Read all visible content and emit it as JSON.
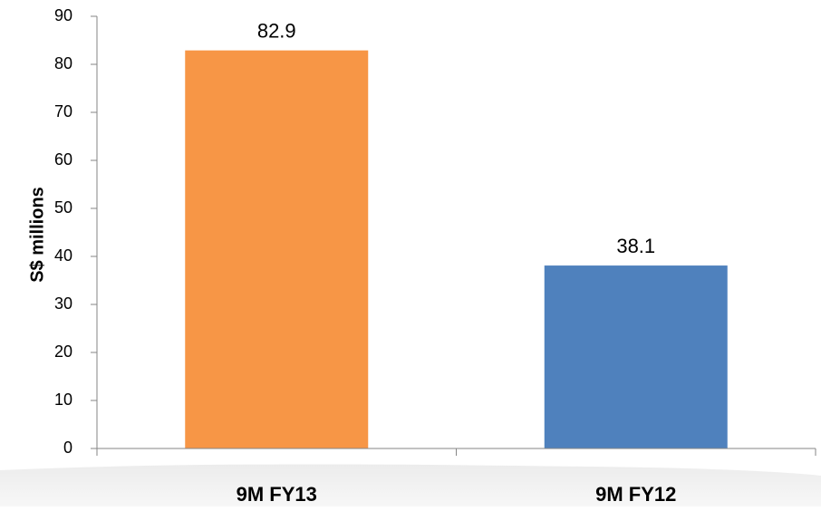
{
  "chart_data": {
    "type": "bar",
    "categories": [
      "9M FY13",
      "9M FY12"
    ],
    "values": [
      82.9,
      38.1
    ],
    "value_labels": [
      "82.9",
      "38.1"
    ],
    "colors": [
      "#F79646",
      "#4F81BD"
    ],
    "title": "",
    "xlabel": "",
    "ylabel": "S$ millions",
    "ylim": [
      0,
      90
    ],
    "yticks": [
      0,
      10,
      20,
      30,
      40,
      50,
      60,
      70,
      80,
      90
    ],
    "grid": false,
    "legend": "none"
  }
}
